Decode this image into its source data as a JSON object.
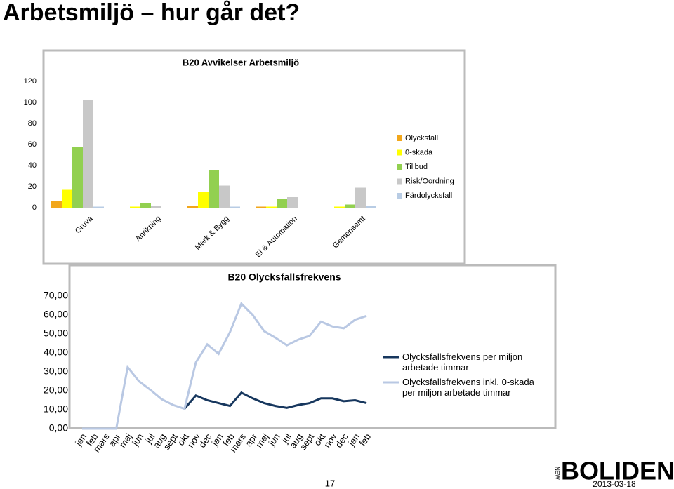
{
  "slide_title": "Arbetsmiljö – hur går det?",
  "page_number": "17",
  "date": "2013-03-18",
  "logo": {
    "prefix": "NEW",
    "name": "BOLIDEN"
  },
  "chart_data": [
    {
      "type": "bar",
      "title": "B20 Avvikelser Arbetsmiljö",
      "categories": [
        "Gruva",
        "Anrikning",
        "Mark & Bygg",
        "El & Automation",
        "Gemensamt"
      ],
      "series": [
        {
          "name": "Olycksfall",
          "color": "#f2a71b",
          "values": [
            6,
            0,
            2,
            1,
            0
          ]
        },
        {
          "name": "0-skada",
          "color": "#ffff00",
          "values": [
            17,
            1,
            15,
            1,
            1
          ]
        },
        {
          "name": "Tillbud",
          "color": "#92d050",
          "values": [
            58,
            4,
            36,
            8,
            3
          ]
        },
        {
          "name": "Risk/Oordning",
          "color": "#c8c8c8",
          "values": [
            102,
            2,
            21,
            10,
            19
          ]
        },
        {
          "name": "Färdolycksfall",
          "color": "#b8cce4",
          "values": [
            1,
            0,
            1,
            0,
            2
          ]
        }
      ],
      "ylim": [
        0,
        120
      ],
      "yticks": [
        0,
        20,
        40,
        60,
        80,
        100,
        120
      ],
      "grid": false,
      "legend": "right"
    },
    {
      "type": "line",
      "title": "B20 Olycksfallsfrekvens",
      "categories": [
        "jan",
        "feb",
        "mars",
        "apr",
        "maj",
        "jun",
        "jul",
        "aug",
        "sept",
        "okt",
        "nov",
        "dec",
        "jan",
        "feb",
        "mars",
        "apr",
        "maj",
        "jun",
        "jul",
        "aug",
        "sept",
        "okt",
        "nov",
        "dec",
        "jan",
        "feb"
      ],
      "series": [
        {
          "name": "Olycksfallsfrekvens per miljon arbetade timmar",
          "color": "#17375e",
          "values": [
            null,
            null,
            null,
            null,
            null,
            null,
            null,
            null,
            null,
            10.5,
            17.5,
            15,
            13.5,
            12,
            19,
            16,
            13.5,
            12,
            11,
            12.5,
            13.5,
            16,
            16,
            14.5,
            15,
            13.5
          ]
        },
        {
          "name": "Olycksfallsfrekvens inkl. 0-skada per miljon arbetade timmar",
          "color": "#b9c8e3",
          "values": [
            0,
            0,
            0,
            0,
            32.5,
            25,
            20.5,
            15.5,
            12.5,
            10.5,
            35,
            44.5,
            39.5,
            51,
            66,
            60,
            51.5,
            48,
            44,
            47,
            49,
            56.5,
            54,
            53,
            57.5,
            59.5
          ]
        }
      ],
      "ylim": [
        0,
        70
      ],
      "yticks": [
        {
          "value": 0,
          "label": "0,00"
        },
        {
          "value": 10,
          "label": "10,00"
        },
        {
          "value": 20,
          "label": "20,00"
        },
        {
          "value": 30,
          "label": "30,00"
        },
        {
          "value": 40,
          "label": "40,00"
        },
        {
          "value": 50,
          "label": "50,00"
        },
        {
          "value": 60,
          "label": "60,00"
        },
        {
          "value": 70,
          "label": "70,00"
        }
      ],
      "grid": false,
      "legend": "right"
    }
  ]
}
